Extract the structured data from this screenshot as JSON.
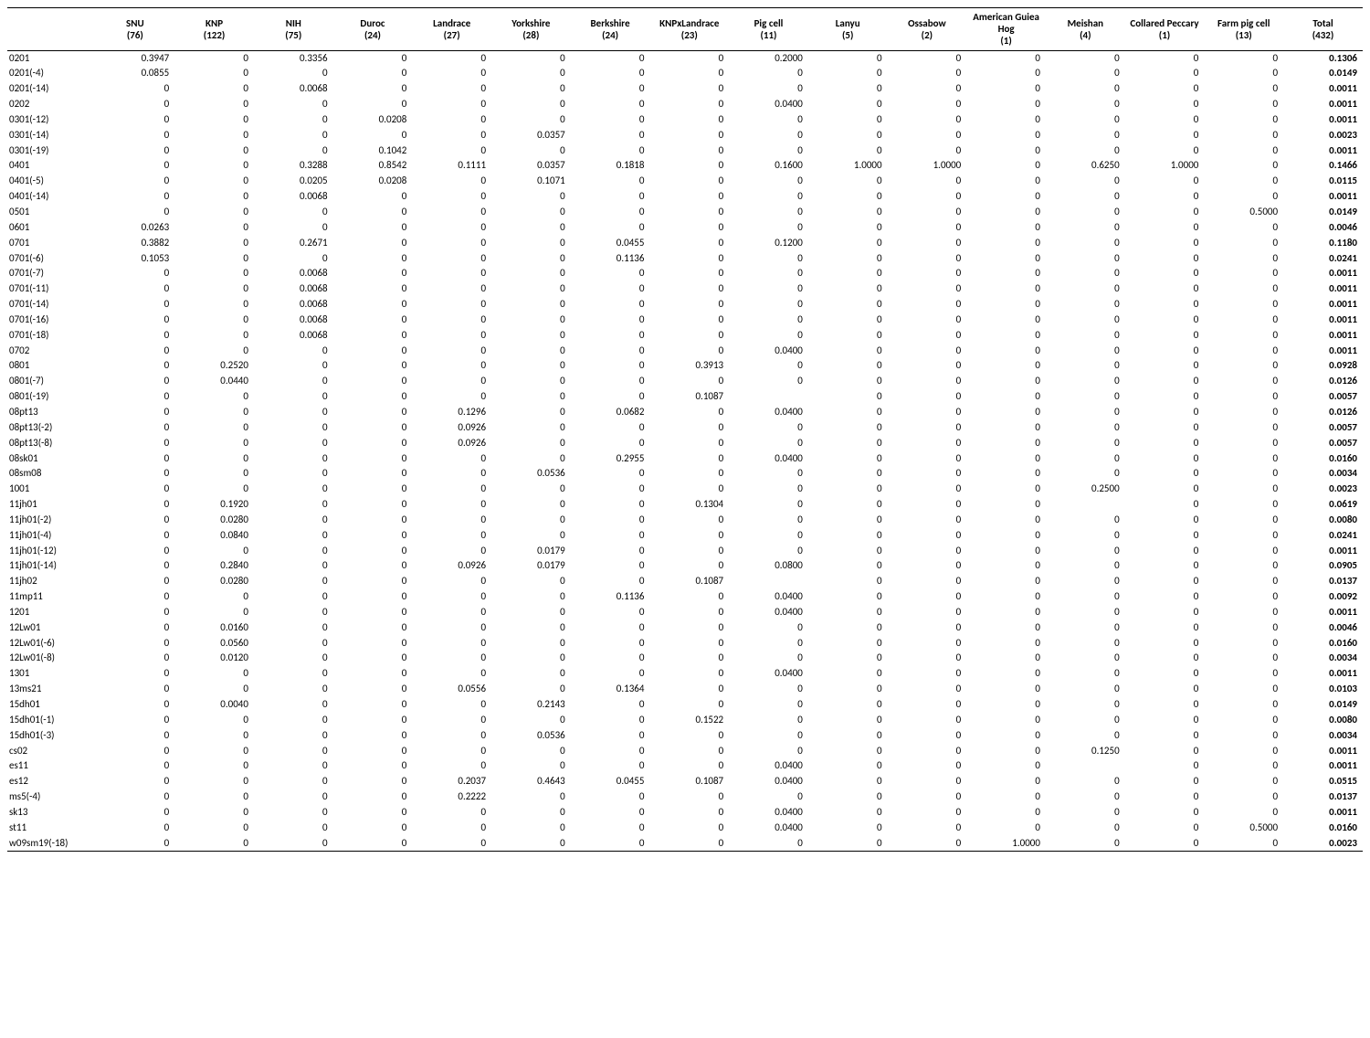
{
  "table": {
    "columns": [
      {
        "name": "SNU",
        "count": "(76)"
      },
      {
        "name": "KNP",
        "count": "(122)"
      },
      {
        "name": "NIH",
        "count": "(75)"
      },
      {
        "name": "Duroc",
        "count": "(24)"
      },
      {
        "name": "Landrace",
        "count": "(27)"
      },
      {
        "name": "Yorkshire",
        "count": "(28)"
      },
      {
        "name": "Berkshire",
        "count": "(24)"
      },
      {
        "name": "KNPxLandrace",
        "count": "(23)"
      },
      {
        "name": "Pig cell",
        "count": "(11)"
      },
      {
        "name": "Lanyu",
        "count": "(5)"
      },
      {
        "name": "Ossabow",
        "count": "(2)"
      },
      {
        "name": "American Guiea Hog",
        "count": "(1)"
      },
      {
        "name": "Meishan",
        "count": "(4)"
      },
      {
        "name": "Collared Peccary",
        "count": "(1)"
      },
      {
        "name": "Farm pig cell",
        "count": "(13)"
      },
      {
        "name": "Total",
        "count": "(432)"
      }
    ],
    "rows": [
      {
        "label": "0201",
        "values": [
          "0.3947",
          "0",
          "0.3356",
          "0",
          "0",
          "0",
          "0",
          "0",
          "0.2000",
          "0",
          "0",
          "0",
          "0",
          "0",
          "0",
          "0.1306"
        ]
      },
      {
        "label": "0201(-4)",
        "values": [
          "0.0855",
          "0",
          "0",
          "0",
          "0",
          "0",
          "0",
          "0",
          "0",
          "0",
          "0",
          "0",
          "0",
          "0",
          "0",
          "0.0149"
        ]
      },
      {
        "label": "0201(-14)",
        "values": [
          "0",
          "0",
          "0.0068",
          "0",
          "0",
          "0",
          "0",
          "0",
          "0",
          "0",
          "0",
          "0",
          "0",
          "0",
          "0",
          "0.0011"
        ]
      },
      {
        "label": "0202",
        "values": [
          "0",
          "0",
          "0",
          "0",
          "0",
          "0",
          "0",
          "0",
          "0.0400",
          "0",
          "0",
          "0",
          "0",
          "0",
          "0",
          "0.0011"
        ]
      },
      {
        "label": "0301(-12)",
        "values": [
          "0",
          "0",
          "0",
          "0.0208",
          "0",
          "0",
          "0",
          "0",
          "0",
          "0",
          "0",
          "0",
          "0",
          "0",
          "0",
          "0.0011"
        ]
      },
      {
        "label": "0301(-14)",
        "values": [
          "0",
          "0",
          "0",
          "0",
          "0",
          "0.0357",
          "0",
          "0",
          "0",
          "0",
          "0",
          "0",
          "0",
          "0",
          "0",
          "0.0023"
        ]
      },
      {
        "label": "0301(-19)",
        "values": [
          "0",
          "0",
          "0",
          "0.1042",
          "0",
          "0",
          "0",
          "0",
          "0",
          "0",
          "0",
          "0",
          "0",
          "0",
          "0",
          "0.0011"
        ]
      },
      {
        "label": "0401",
        "values": [
          "0",
          "0",
          "0.3288",
          "0.8542",
          "0.1111",
          "0.0357",
          "0.1818",
          "0",
          "0.1600",
          "1.0000",
          "1.0000",
          "0",
          "0.6250",
          "1.0000",
          "0",
          "0.1466"
        ]
      },
      {
        "label": "0401(-5)",
        "values": [
          "0",
          "0",
          "0.0205",
          "0.0208",
          "0",
          "0.1071",
          "0",
          "0",
          "0",
          "0",
          "0",
          "0",
          "0",
          "0",
          "0",
          "0.0115"
        ]
      },
      {
        "label": "0401(-14)",
        "values": [
          "0",
          "0",
          "0.0068",
          "0",
          "0",
          "0",
          "0",
          "0",
          "0",
          "0",
          "0",
          "0",
          "0",
          "0",
          "0",
          "0.0011"
        ]
      },
      {
        "label": "0501",
        "values": [
          "0",
          "0",
          "0",
          "0",
          "0",
          "0",
          "0",
          "0",
          "0",
          "0",
          "0",
          "0",
          "0",
          "0",
          "0.5000",
          "0.0149"
        ]
      },
      {
        "label": "0601",
        "values": [
          "0.0263",
          "0",
          "0",
          "0",
          "0",
          "0",
          "0",
          "0",
          "0",
          "0",
          "0",
          "0",
          "0",
          "0",
          "0",
          "0.0046"
        ]
      },
      {
        "label": "0701",
        "values": [
          "0.3882",
          "0",
          "0.2671",
          "0",
          "0",
          "0",
          "0.0455",
          "0",
          "0.1200",
          "0",
          "0",
          "0",
          "0",
          "0",
          "0",
          "0.1180"
        ]
      },
      {
        "label": "0701(-6)",
        "values": [
          "0.1053",
          "0",
          "0",
          "0",
          "0",
          "0",
          "0.1136",
          "0",
          "0",
          "0",
          "0",
          "0",
          "0",
          "0",
          "0",
          "0.0241"
        ]
      },
      {
        "label": "0701(-7)",
        "values": [
          "0",
          "0",
          "0.0068",
          "0",
          "0",
          "0",
          "0",
          "0",
          "0",
          "0",
          "0",
          "0",
          "0",
          "0",
          "0",
          "0.0011"
        ]
      },
      {
        "label": "0701(-11)",
        "values": [
          "0",
          "0",
          "0.0068",
          "0",
          "0",
          "0",
          "0",
          "0",
          "0",
          "0",
          "0",
          "0",
          "0",
          "0",
          "0",
          "0.0011"
        ]
      },
      {
        "label": "0701(-14)",
        "values": [
          "0",
          "0",
          "0.0068",
          "0",
          "0",
          "0",
          "0",
          "0",
          "0",
          "0",
          "0",
          "0",
          "0",
          "0",
          "0",
          "0.0011"
        ]
      },
      {
        "label": "0701(-16)",
        "values": [
          "0",
          "0",
          "0.0068",
          "0",
          "0",
          "0",
          "0",
          "0",
          "0",
          "0",
          "0",
          "0",
          "0",
          "0",
          "0",
          "0.0011"
        ]
      },
      {
        "label": "0701(-18)",
        "values": [
          "0",
          "0",
          "0.0068",
          "0",
          "0",
          "0",
          "0",
          "0",
          "0",
          "0",
          "0",
          "0",
          "0",
          "0",
          "0",
          "0.0011"
        ]
      },
      {
        "label": "0702",
        "values": [
          "0",
          "0",
          "0",
          "0",
          "0",
          "0",
          "0",
          "0",
          "0.0400",
          "0",
          "0",
          "0",
          "0",
          "0",
          "0",
          "0.0011"
        ]
      },
      {
        "label": "0801",
        "values": [
          "0",
          "0.2520",
          "0",
          "0",
          "0",
          "0",
          "0",
          "0.3913",
          "0",
          "0",
          "0",
          "0",
          "0",
          "0",
          "0",
          "0.0928"
        ]
      },
      {
        "label": "0801(-7)",
        "values": [
          "0",
          "0.0440",
          "0",
          "0",
          "0",
          "0",
          "0",
          "0",
          "0",
          "0",
          "0",
          "0",
          "0",
          "0",
          "0",
          "0.0126"
        ]
      },
      {
        "label": "0801(-19)",
        "values": [
          "0",
          "0",
          "0",
          "0",
          "0",
          "0",
          "0",
          "0.1087",
          "",
          "0",
          "0",
          "0",
          "0",
          "0",
          "0",
          "0.0057"
        ]
      },
      {
        "label": "08pt13",
        "values": [
          "0",
          "0",
          "0",
          "0",
          "0.1296",
          "0",
          "0.0682",
          "0",
          "0.0400",
          "0",
          "0",
          "0",
          "0",
          "0",
          "0",
          "0.0126"
        ]
      },
      {
        "label": "08pt13(-2)",
        "values": [
          "0",
          "0",
          "0",
          "0",
          "0.0926",
          "0",
          "0",
          "0",
          "0",
          "0",
          "0",
          "0",
          "0",
          "0",
          "0",
          "0.0057"
        ]
      },
      {
        "label": "08pt13(-8)",
        "values": [
          "0",
          "0",
          "0",
          "0",
          "0.0926",
          "0",
          "0",
          "0",
          "0",
          "0",
          "0",
          "0",
          "0",
          "0",
          "0",
          "0.0057"
        ]
      },
      {
        "label": "08sk01",
        "values": [
          "0",
          "0",
          "0",
          "0",
          "0",
          "0",
          "0.2955",
          "0",
          "0.0400",
          "0",
          "0",
          "0",
          "0",
          "0",
          "0",
          "0.0160"
        ]
      },
      {
        "label": "08sm08",
        "values": [
          "0",
          "0",
          "0",
          "0",
          "0",
          "0.0536",
          "0",
          "0",
          "0",
          "0",
          "0",
          "0",
          "0",
          "0",
          "0",
          "0.0034"
        ]
      },
      {
        "label": "1001",
        "values": [
          "0",
          "0",
          "0",
          "0",
          "0",
          "0",
          "0",
          "0",
          "0",
          "0",
          "0",
          "0",
          "0.2500",
          "0",
          "0",
          "0.0023"
        ]
      },
      {
        "label": "11jh01",
        "values": [
          "0",
          "0.1920",
          "0",
          "0",
          "0",
          "0",
          "0",
          "0.1304",
          "0",
          "0",
          "0",
          "0",
          "",
          "0",
          "0",
          "0.0619"
        ]
      },
      {
        "label": "11jh01(-2)",
        "values": [
          "0",
          "0.0280",
          "0",
          "0",
          "0",
          "0",
          "0",
          "0",
          "0",
          "0",
          "0",
          "0",
          "0",
          "0",
          "0",
          "0.0080"
        ]
      },
      {
        "label": "11jh01(-4)",
        "values": [
          "0",
          "0.0840",
          "0",
          "0",
          "0",
          "0",
          "0",
          "0",
          "0",
          "0",
          "0",
          "0",
          "0",
          "0",
          "0",
          "0.0241"
        ]
      },
      {
        "label": "11jh01(-12)",
        "values": [
          "0",
          "0",
          "0",
          "0",
          "0",
          "0.0179",
          "0",
          "0",
          "0",
          "0",
          "0",
          "0",
          "0",
          "0",
          "0",
          "0.0011"
        ]
      },
      {
        "label": "11jh01(-14)",
        "values": [
          "0",
          "0.2840",
          "0",
          "0",
          "0.0926",
          "0.0179",
          "0",
          "0",
          "0.0800",
          "0",
          "0",
          "0",
          "0",
          "0",
          "0",
          "0.0905"
        ]
      },
      {
        "label": "11jh02",
        "values": [
          "0",
          "0.0280",
          "0",
          "0",
          "0",
          "0",
          "0",
          "0.1087",
          "",
          "0",
          "0",
          "0",
          "0",
          "0",
          "0",
          "0.0137"
        ]
      },
      {
        "label": "11mp11",
        "values": [
          "0",
          "0",
          "0",
          "0",
          "0",
          "0",
          "0.1136",
          "0",
          "0.0400",
          "0",
          "0",
          "0",
          "0",
          "0",
          "0",
          "0.0092"
        ]
      },
      {
        "label": "1201",
        "values": [
          "0",
          "0",
          "0",
          "0",
          "0",
          "0",
          "0",
          "0",
          "0.0400",
          "0",
          "0",
          "0",
          "0",
          "0",
          "0",
          "0.0011"
        ]
      },
      {
        "label": "12Lw01",
        "values": [
          "0",
          "0.0160",
          "0",
          "0",
          "0",
          "0",
          "0",
          "0",
          "0",
          "0",
          "0",
          "0",
          "0",
          "0",
          "0",
          "0.0046"
        ]
      },
      {
        "label": "12Lw01(-6)",
        "values": [
          "0",
          "0.0560",
          "0",
          "0",
          "0",
          "0",
          "0",
          "0",
          "0",
          "0",
          "0",
          "0",
          "0",
          "0",
          "0",
          "0.0160"
        ]
      },
      {
        "label": "12Lw01(-8)",
        "values": [
          "0",
          "0.0120",
          "0",
          "0",
          "0",
          "0",
          "0",
          "0",
          "0",
          "0",
          "0",
          "0",
          "0",
          "0",
          "0",
          "0.0034"
        ]
      },
      {
        "label": "1301",
        "values": [
          "0",
          "0",
          "0",
          "0",
          "0",
          "0",
          "0",
          "0",
          "0.0400",
          "0",
          "0",
          "0",
          "0",
          "0",
          "0",
          "0.0011"
        ]
      },
      {
        "label": "13ms21",
        "values": [
          "0",
          "0",
          "0",
          "0",
          "0.0556",
          "0",
          "0.1364",
          "0",
          "0",
          "0",
          "0",
          "0",
          "0",
          "0",
          "0",
          "0.0103"
        ]
      },
      {
        "label": "15dh01",
        "values": [
          "0",
          "0.0040",
          "0",
          "0",
          "0",
          "0.2143",
          "0",
          "0",
          "0",
          "0",
          "0",
          "0",
          "0",
          "0",
          "0",
          "0.0149"
        ]
      },
      {
        "label": "15dh01(-1)",
        "values": [
          "0",
          "0",
          "0",
          "0",
          "0",
          "0",
          "0",
          "0.1522",
          "0",
          "0",
          "0",
          "0",
          "0",
          "0",
          "0",
          "0.0080"
        ]
      },
      {
        "label": "15dh01(-3)",
        "values": [
          "0",
          "0",
          "0",
          "0",
          "0",
          "0.0536",
          "0",
          "0",
          "0",
          "0",
          "0",
          "0",
          "0",
          "0",
          "0",
          "0.0034"
        ]
      },
      {
        "label": "cs02",
        "values": [
          "0",
          "0",
          "0",
          "0",
          "0",
          "0",
          "0",
          "0",
          "0",
          "0",
          "0",
          "0",
          "0.1250",
          "0",
          "0",
          "0.0011"
        ]
      },
      {
        "label": "es11",
        "values": [
          "0",
          "0",
          "0",
          "0",
          "0",
          "0",
          "0",
          "0",
          "0.0400",
          "0",
          "0",
          "0",
          "",
          "0",
          "0",
          "0.0011"
        ]
      },
      {
        "label": "es12",
        "values": [
          "0",
          "0",
          "0",
          "0",
          "0.2037",
          "0.4643",
          "0.0455",
          "0.1087",
          "0.0400",
          "0",
          "0",
          "0",
          "0",
          "0",
          "0",
          "0.0515"
        ]
      },
      {
        "label": "ms5(-4)",
        "values": [
          "0",
          "0",
          "0",
          "0",
          "0.2222",
          "0",
          "0",
          "0",
          "0",
          "0",
          "0",
          "0",
          "0",
          "0",
          "0",
          "0.0137"
        ]
      },
      {
        "label": "sk13",
        "values": [
          "0",
          "0",
          "0",
          "0",
          "0",
          "0",
          "0",
          "0",
          "0.0400",
          "0",
          "0",
          "0",
          "0",
          "0",
          "0",
          "0.0011"
        ]
      },
      {
        "label": "st11",
        "values": [
          "0",
          "0",
          "0",
          "0",
          "0",
          "0",
          "0",
          "0",
          "0.0400",
          "0",
          "0",
          "0",
          "0",
          "0",
          "0.5000",
          "0.0160"
        ]
      },
      {
        "label": "w09sm19(-18)",
        "values": [
          "0",
          "0",
          "0",
          "0",
          "0",
          "0",
          "0",
          "0",
          "0",
          "0",
          "0",
          "1.0000",
          "0",
          "0",
          "0",
          "0.0023"
        ]
      }
    ]
  }
}
